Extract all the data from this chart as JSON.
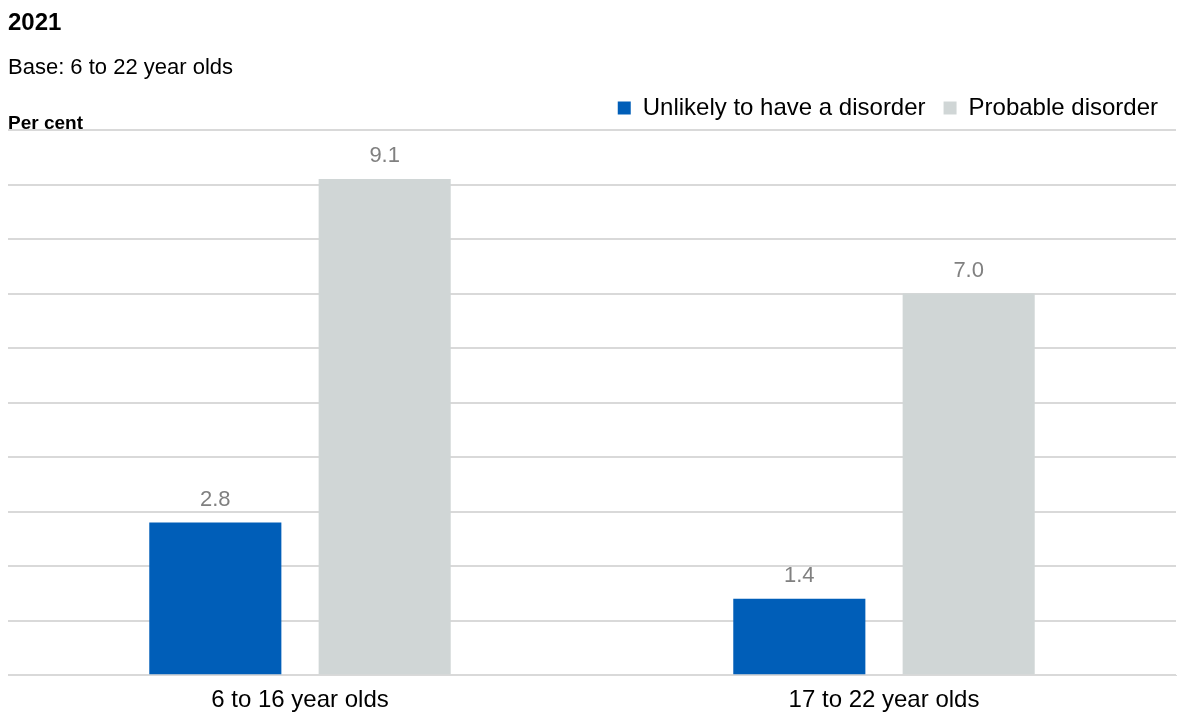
{
  "chart_data": {
    "type": "bar",
    "title": "2021",
    "subtitle": "Base: 6 to 22 year olds",
    "ylabel": "Per cent",
    "categories": [
      "6 to 16 year olds",
      "17 to 22 year olds"
    ],
    "series": [
      {
        "name": "Unlikely to have a disorder",
        "color": "#005eb8",
        "values": [
          2.8,
          1.4
        ],
        "value_labels": [
          "2.8",
          "1.4"
        ]
      },
      {
        "name": "Probable disorder",
        "color": "#d0d6d6",
        "values": [
          9.1,
          7.0
        ],
        "value_labels": [
          "9.1",
          "7.0"
        ]
      }
    ],
    "ylim": [
      0,
      10
    ],
    "yticks": [
      {
        "value": 0,
        "label": null
      },
      {
        "value": 1,
        "label": null
      },
      {
        "value": 2,
        "label": null
      },
      {
        "value": 3,
        "label": null
      },
      {
        "value": 4,
        "label": null
      },
      {
        "value": 5,
        "label": null
      },
      {
        "value": 6,
        "label": null
      },
      {
        "value": 7,
        "label": null
      },
      {
        "value": 8,
        "label": null
      },
      {
        "value": 9,
        "label": null
      },
      {
        "value": 10,
        "label": null
      }
    ],
    "grid": "y",
    "legend": "top right",
    "tick_labels": "x"
  }
}
